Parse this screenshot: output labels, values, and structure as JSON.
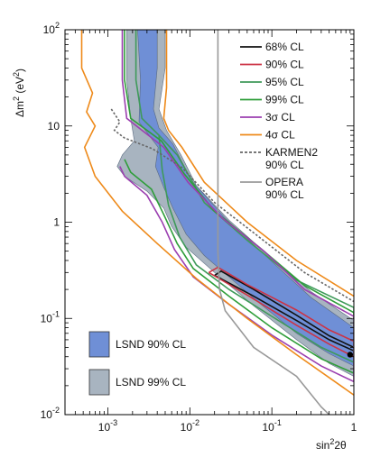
{
  "chart_data": {
    "type": "contour",
    "xlabel_base": "sin",
    "xlabel_sup": "2",
    "xlabel_tail": "2θ",
    "ylabel_base": "Δm",
    "ylabel_sup": "2",
    "ylabel_tail": " (eV",
    "ylabel_sup2": "2",
    "ylabel_end": ")",
    "xscale": "log",
    "yscale": "log",
    "xlim": [
      0.0003,
      1
    ],
    "ylim": [
      0.01,
      100
    ],
    "x_ticks": [
      {
        "value": 0.001,
        "base": "10",
        "exp": "-3"
      },
      {
        "value": 0.01,
        "base": "10",
        "exp": "-2"
      },
      {
        "value": 0.1,
        "base": "10",
        "exp": "-1"
      },
      {
        "value": 1,
        "base": "1",
        "exp": ""
      }
    ],
    "y_ticks": [
      {
        "value": 0.01,
        "base": "10",
        "exp": "-2"
      },
      {
        "value": 0.1,
        "base": "10",
        "exp": "-1"
      },
      {
        "value": 1,
        "base": "1",
        "exp": ""
      },
      {
        "value": 10,
        "base": "10",
        "exp": ""
      },
      {
        "value": 100,
        "base": "10",
        "exp": "2"
      }
    ],
    "legend": [
      {
        "label": "68% CL",
        "color": "#111111",
        "dash": false
      },
      {
        "label": "90% CL",
        "color": "#cc3344",
        "dash": false
      },
      {
        "label": "95% CL",
        "color": "#3f9a5a",
        "dash": false
      },
      {
        "label": "99% CL",
        "color": "#2f9e3a",
        "dash": false
      },
      {
        "label": "3σ CL",
        "color": "#9b3fb0",
        "dash": false
      },
      {
        "label": "4σ CL",
        "color": "#ee8a1a",
        "dash": false
      },
      {
        "label": "KARMEN2",
        "label2": "90% CL",
        "color": "#666666",
        "dash": true
      },
      {
        "label": "OPERA",
        "label2": "90% CL",
        "color": "#999999",
        "dash": false
      }
    ],
    "box_legend": [
      {
        "label": "LSND 90% CL",
        "color": "#6f8fd6"
      },
      {
        "label": "LSND 99% CL",
        "color": "#a8b4c0"
      }
    ],
    "best_fit": {
      "x": 0.9,
      "y": 0.042
    },
    "series": [
      {
        "name": "LSND 99% CL",
        "kind": "fill",
        "color": "#a8b4c0",
        "points": [
          [
            0.0017,
            100
          ],
          [
            0.005,
            100
          ],
          [
            0.005,
            40
          ],
          [
            0.0042,
            15
          ],
          [
            0.0052,
            9
          ],
          [
            0.0078,
            5
          ],
          [
            0.012,
            2.4
          ],
          [
            0.03,
            1.05
          ],
          [
            0.1,
            0.42
          ],
          [
            0.3,
            0.19
          ],
          [
            1,
            0.095
          ],
          [
            1,
            0.025
          ],
          [
            0.5,
            0.034
          ],
          [
            0.2,
            0.06
          ],
          [
            0.06,
            0.135
          ],
          [
            0.02,
            0.3
          ],
          [
            0.009,
            0.55
          ],
          [
            0.006,
            0.9
          ],
          [
            0.0048,
            1.4
          ],
          [
            0.003,
            2.1
          ],
          [
            0.0016,
            3.0
          ],
          [
            0.0013,
            3.8
          ],
          [
            0.0015,
            5
          ],
          [
            0.0021,
            7
          ],
          [
            0.0019,
            12
          ],
          [
            0.0017,
            30
          ]
        ]
      },
      {
        "name": "LSND 90% CL",
        "kind": "fill",
        "color": "#6f8fd6",
        "points": [
          [
            0.0023,
            100
          ],
          [
            0.004,
            100
          ],
          [
            0.004,
            40
          ],
          [
            0.0036,
            15
          ],
          [
            0.0042,
            9.5
          ],
          [
            0.0062,
            6.5
          ],
          [
            0.0105,
            2.7
          ],
          [
            0.027,
            1.1
          ],
          [
            0.1,
            0.39
          ],
          [
            0.3,
            0.165
          ],
          [
            1,
            0.08
          ],
          [
            1,
            0.032
          ],
          [
            0.5,
            0.043
          ],
          [
            0.2,
            0.07
          ],
          [
            0.07,
            0.145
          ],
          [
            0.03,
            0.27
          ],
          [
            0.015,
            0.45
          ],
          [
            0.009,
            0.75
          ],
          [
            0.0062,
            1.4
          ],
          [
            0.0048,
            2.3
          ],
          [
            0.0038,
            3.8
          ],
          [
            0.0041,
            6
          ],
          [
            0.0024,
            11
          ],
          [
            0.0025,
            30
          ]
        ]
      },
      {
        "name": "68% CL",
        "kind": "line",
        "color": "#111111",
        "points": [
          [
            0.02,
            0.28
          ],
          [
            0.06,
            0.17
          ],
          [
            0.2,
            0.095
          ],
          [
            0.5,
            0.06
          ],
          [
            1,
            0.046
          ],
          [
            1,
            0.05
          ],
          [
            0.5,
            0.066
          ],
          [
            0.2,
            0.108
          ],
          [
            0.06,
            0.2
          ],
          [
            0.024,
            0.31
          ],
          [
            0.02,
            0.28
          ]
        ]
      },
      {
        "name": "90% CL",
        "kind": "line",
        "color": "#cc3344",
        "points": [
          [
            0.017,
            0.3
          ],
          [
            0.05,
            0.175
          ],
          [
            0.2,
            0.085
          ],
          [
            0.5,
            0.054
          ],
          [
            1,
            0.04
          ],
          [
            1,
            0.058
          ],
          [
            0.5,
            0.076
          ],
          [
            0.2,
            0.122
          ],
          [
            0.05,
            0.225
          ],
          [
            0.022,
            0.34
          ],
          [
            0.017,
            0.3
          ]
        ]
      },
      {
        "name": "95% CL",
        "kind": "line",
        "color": "#3f9a5a",
        "points": [
          [
            0.0022,
            100
          ],
          [
            0.0022,
            30
          ],
          [
            0.0026,
            12
          ],
          [
            0.0042,
            8
          ],
          [
            0.007,
            5
          ],
          [
            0.015,
            1.6
          ],
          [
            0.05,
            0.65
          ],
          [
            0.2,
            0.25
          ],
          [
            1,
            0.13
          ],
          [
            1,
            0.035
          ],
          [
            0.4,
            0.05
          ],
          [
            0.1,
            0.105
          ],
          [
            0.03,
            0.2
          ],
          [
            0.012,
            0.36
          ],
          [
            0.0075,
            0.7
          ],
          [
            0.0055,
            1.5
          ],
          [
            0.0046,
            3.5
          ],
          [
            0.0042,
            8
          ]
        ]
      },
      {
        "name": "99% CL",
        "kind": "line",
        "color": "#2f9e3a",
        "points": [
          [
            0.0016,
            100
          ],
          [
            0.0016,
            30
          ],
          [
            0.0019,
            12
          ],
          [
            0.0045,
            7
          ],
          [
            0.0085,
            3.2
          ],
          [
            0.02,
            1.3
          ],
          [
            0.07,
            0.55
          ],
          [
            0.25,
            0.22
          ],
          [
            1,
            0.115
          ],
          [
            1,
            0.027
          ],
          [
            0.4,
            0.038
          ],
          [
            0.1,
            0.08
          ],
          [
            0.03,
            0.17
          ],
          [
            0.011,
            0.33
          ],
          [
            0.007,
            0.6
          ],
          [
            0.0048,
            1.2
          ],
          [
            0.0034,
            2.2
          ],
          [
            0.0019,
            3.3
          ],
          [
            0.0016,
            4.5
          ]
        ]
      },
      {
        "name": "3σ CL",
        "kind": "line",
        "color": "#9b3fb0",
        "points": [
          [
            0.0015,
            100
          ],
          [
            0.0015,
            30
          ],
          [
            0.0017,
            12
          ],
          [
            0.0048,
            6
          ],
          [
            0.0095,
            2.6
          ],
          [
            0.025,
            1.1
          ],
          [
            0.08,
            0.5
          ],
          [
            0.25,
            0.2
          ],
          [
            1,
            0.105
          ],
          [
            1,
            0.022
          ],
          [
            0.4,
            0.032
          ],
          [
            0.1,
            0.067
          ],
          [
            0.03,
            0.14
          ],
          [
            0.011,
            0.27
          ],
          [
            0.0065,
            0.52
          ],
          [
            0.0046,
            1.0
          ],
          [
            0.003,
            1.9
          ],
          [
            0.0016,
            3.0
          ],
          [
            0.0014,
            3.8
          ]
        ]
      },
      {
        "name": "4σ CL",
        "kind": "line",
        "color": "#ee8a1a",
        "points": [
          [
            0.00048,
            100
          ],
          [
            0.00048,
            40
          ],
          [
            0.00065,
            22
          ],
          [
            0.00055,
            14
          ],
          [
            0.0007,
            10
          ],
          [
            0.00052,
            6
          ],
          [
            0.0007,
            3
          ],
          [
            0.0015,
            1.3
          ],
          [
            0.004,
            0.6
          ],
          [
            0.012,
            0.26
          ],
          [
            0.05,
            0.1
          ],
          [
            0.2,
            0.042
          ],
          [
            1,
            0.016
          ]
        ]
      },
      {
        "name": "4σ CL",
        "kind": "line",
        "color": "#ee8a1a",
        "points": [
          [
            0.0052,
            100
          ],
          [
            0.0052,
            25
          ],
          [
            0.0048,
            12
          ],
          [
            0.0055,
            9
          ],
          [
            0.008,
            6
          ],
          [
            0.015,
            2.6
          ],
          [
            0.05,
            1.0
          ],
          [
            0.2,
            0.4
          ],
          [
            1,
            0.17
          ]
        ]
      },
      {
        "name": "KARMEN2 90% CL",
        "kind": "line",
        "color": "#666666",
        "dash": true,
        "points": [
          [
            0.0011,
            15
          ],
          [
            0.0014,
            11
          ],
          [
            0.0012,
            9
          ],
          [
            0.0016,
            7.5
          ],
          [
            0.0035,
            5.8
          ],
          [
            0.008,
            3.7
          ],
          [
            0.02,
            1.6
          ],
          [
            0.07,
            0.7
          ],
          [
            0.25,
            0.3
          ],
          [
            1,
            0.15
          ]
        ]
      },
      {
        "name": "OPERA 90% CL",
        "kind": "line",
        "color": "#999999",
        "points": [
          [
            0.022,
            100
          ],
          [
            0.022,
            0.5
          ],
          [
            0.023,
            0.2
          ],
          [
            0.027,
            0.12
          ],
          [
            0.06,
            0.05
          ],
          [
            0.2,
            0.025
          ],
          [
            0.4,
            0.012
          ],
          [
            0.5,
            0.01
          ]
        ]
      }
    ]
  }
}
